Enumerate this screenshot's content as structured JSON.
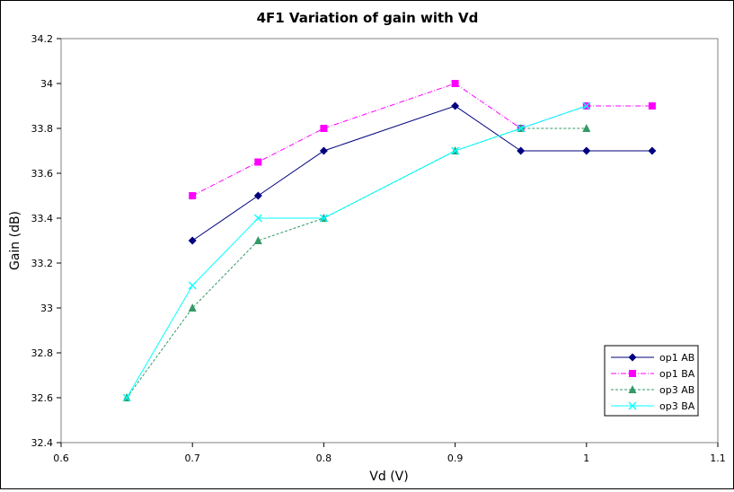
{
  "chart_data": {
    "type": "line",
    "title": "4F1 Variation of gain with Vd",
    "xlabel": "Vd (V)",
    "ylabel": "Gain (dB)",
    "xlim": [
      0.6,
      1.1
    ],
    "ylim": [
      32.4,
      34.2
    ],
    "x_ticks": [
      0.6,
      0.7,
      0.8,
      0.9,
      1,
      1.1
    ],
    "x_tick_labels": [
      "0.6",
      "0.7",
      "0.8",
      "0.9",
      "1",
      "1.1"
    ],
    "y_ticks": [
      32.4,
      32.6,
      32.8,
      33,
      33.2,
      33.4,
      33.6,
      33.8,
      34,
      34.2
    ],
    "y_tick_labels": [
      "32.4",
      "32.6",
      "32.8",
      "33",
      "33.2",
      "33.4",
      "33.6",
      "33.8",
      "34",
      "34.2"
    ],
    "grid": false,
    "legend_position": "bottom-right",
    "series": [
      {
        "name": "op1 AB",
        "color": "#000080",
        "marker": "diamond",
        "dash": "solid",
        "points": [
          [
            0.7,
            33.3
          ],
          [
            0.75,
            33.5
          ],
          [
            0.8,
            33.7
          ],
          [
            0.9,
            33.9
          ],
          [
            0.95,
            33.7
          ],
          [
            1.0,
            33.7
          ],
          [
            1.05,
            33.7
          ]
        ]
      },
      {
        "name": "op1 BA",
        "color": "#FF00FF",
        "marker": "square",
        "dash": "dashdot",
        "points": [
          [
            0.7,
            33.5
          ],
          [
            0.75,
            33.65
          ],
          [
            0.8,
            33.8
          ],
          [
            0.9,
            34.0
          ],
          [
            0.95,
            33.8
          ],
          [
            1.0,
            33.9
          ],
          [
            1.05,
            33.9
          ]
        ]
      },
      {
        "name": "op3 AB",
        "color": "#339966",
        "marker": "triangle",
        "dash": "dashed",
        "points": [
          [
            0.65,
            32.6
          ],
          [
            0.7,
            33.0
          ],
          [
            0.75,
            33.3
          ],
          [
            0.8,
            33.4
          ],
          [
            0.9,
            33.7
          ],
          [
            0.95,
            33.8
          ],
          [
            1.0,
            33.8
          ]
        ]
      },
      {
        "name": "op3 BA",
        "color": "#00FFFF",
        "marker": "x",
        "dash": "solid",
        "points": [
          [
            0.65,
            32.6
          ],
          [
            0.7,
            33.1
          ],
          [
            0.75,
            33.4
          ],
          [
            0.8,
            33.4
          ],
          [
            0.9,
            33.7
          ],
          [
            0.95,
            33.8
          ],
          [
            1.0,
            33.9
          ]
        ]
      }
    ]
  }
}
